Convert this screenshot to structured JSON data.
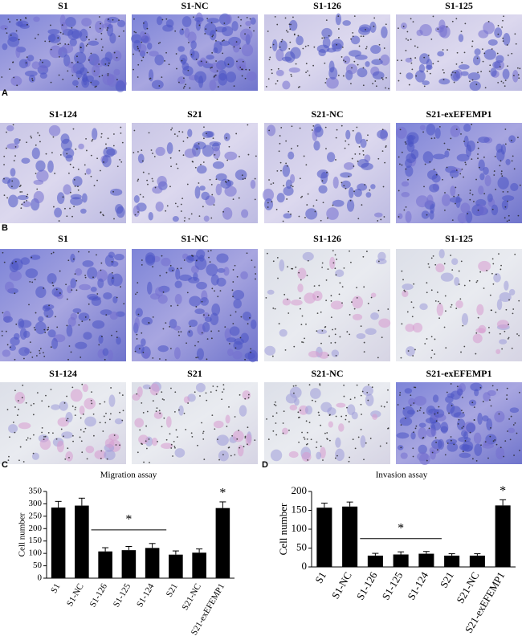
{
  "panels": {
    "a": {
      "label": "A",
      "images": [
        "S1",
        "S1-NC",
        "S1-126",
        "S1-125",
        "S1-124",
        "S21",
        "S21-NC",
        "S21-exEFEMP1"
      ]
    },
    "b": {
      "label": "B",
      "images": [
        "S1",
        "S1-NC",
        "S1-126",
        "S1-125",
        "S1-124",
        "S21",
        "S21-NC",
        "S21-exEFEMP1"
      ]
    }
  },
  "chart_data": [
    {
      "type": "bar",
      "panel_label": "C",
      "title": "Migration assay",
      "y_label": "Cell number",
      "categories": [
        "S1",
        "S1-NC",
        "S1-126",
        "S1-125",
        "S1-124",
        "S21",
        "S21-NC",
        "S21-exEFEMP1"
      ],
      "values": [
        285,
        293,
        108,
        113,
        122,
        95,
        103,
        283
      ],
      "errors": [
        25,
        30,
        15,
        15,
        18,
        15,
        15,
        25
      ],
      "color": "#000000",
      "ylim": [
        0,
        350
      ],
      "yticks": [
        0,
        50,
        100,
        150,
        200,
        250,
        300,
        350
      ],
      "annotations": [
        "*",
        "*"
      ]
    },
    {
      "type": "bar",
      "panel_label": "D",
      "title": "Invasion assay",
      "y_label": "Cell number",
      "categories": [
        "S1",
        "S1-NC",
        "S1-126",
        "S1-125",
        "S1-124",
        "S21",
        "S21-NC",
        "S21-exEFEMP1"
      ],
      "values": [
        157,
        160,
        30,
        33,
        35,
        30,
        30,
        163
      ],
      "errors": [
        12,
        12,
        6,
        7,
        6,
        5,
        5,
        15
      ],
      "color": "#000000",
      "ylim": [
        0,
        200
      ],
      "yticks": [
        0,
        50,
        100,
        150,
        200
      ],
      "annotations": [
        "*",
        "*"
      ]
    }
  ]
}
